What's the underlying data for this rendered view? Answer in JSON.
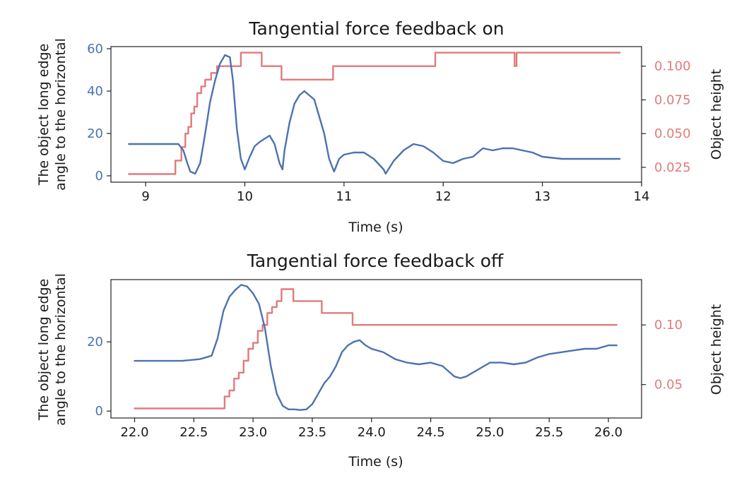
{
  "chart_data": [
    {
      "type": "line",
      "title": "Tangential force feedback on",
      "xlabel": "Time (s)",
      "ylabel": [
        "The object long edge",
        "angle to the horizontal"
      ],
      "ylabel_right": "Object height",
      "xlim": [
        8.65,
        14.0
      ],
      "ylim": [
        -3,
        61
      ],
      "ylim_right": [
        0.014,
        0.1145
      ],
      "x_ticks": [
        9,
        10,
        11,
        12,
        13,
        14
      ],
      "y_ticks": [
        0,
        20,
        40,
        60
      ],
      "y_ticks_right": [
        0.025,
        0.05,
        0.075,
        0.1
      ],
      "x_tick_labels": [
        "9",
        "10",
        "11",
        "12",
        "13",
        "14"
      ],
      "y_tick_labels": [
        "0",
        "20",
        "40",
        "60"
      ],
      "y_right_tick_labels": [
        "0.025",
        "0.050",
        "0.075",
        "0.100"
      ],
      "grid": false,
      "series": [
        {
          "name": "angle",
          "axis": "left",
          "color": "#4c72b0",
          "x": [
            8.83,
            9.1,
            9.33,
            9.38,
            9.42,
            9.45,
            9.5,
            9.55,
            9.6,
            9.65,
            9.7,
            9.75,
            9.8,
            9.85,
            9.88,
            9.92,
            9.96,
            10.0,
            10.05,
            10.1,
            10.15,
            10.25,
            10.3,
            10.35,
            10.38,
            10.4,
            10.45,
            10.5,
            10.55,
            10.6,
            10.7,
            10.8,
            10.85,
            10.9,
            10.95,
            11.0,
            11.1,
            11.2,
            11.3,
            11.4,
            11.42,
            11.5,
            11.6,
            11.7,
            11.8,
            11.9,
            12.0,
            12.1,
            12.2,
            12.3,
            12.4,
            12.5,
            12.6,
            12.7,
            12.8,
            12.9,
            13.0,
            13.2,
            13.4,
            13.6,
            13.78
          ],
          "values": [
            15,
            15,
            15,
            12,
            6,
            2,
            1,
            6,
            20,
            35,
            45,
            53,
            57,
            56,
            45,
            22,
            8,
            3,
            9,
            14,
            16,
            19,
            15,
            6,
            3,
            12,
            25,
            34,
            38,
            40,
            36,
            20,
            8,
            2,
            8,
            10,
            11,
            11,
            8,
            3,
            1,
            7,
            12,
            15,
            14,
            11,
            7,
            6,
            8,
            9,
            13,
            12,
            13,
            13,
            12,
            11,
            9,
            8,
            8,
            8,
            8
          ]
        },
        {
          "name": "height",
          "axis": "right",
          "color": "#e07b7b",
          "x": [
            8.83,
            9.3,
            9.3,
            9.36,
            9.36,
            9.4,
            9.4,
            9.43,
            9.43,
            9.46,
            9.46,
            9.49,
            9.49,
            9.52,
            9.52,
            9.56,
            9.56,
            9.6,
            9.6,
            9.66,
            9.66,
            9.72,
            9.72,
            9.96,
            9.96,
            10.17,
            10.17,
            10.37,
            10.37,
            10.89,
            10.89,
            11.92,
            11.92,
            12.72,
            12.72,
            12.74,
            12.74,
            13.78
          ],
          "values": [
            0.02,
            0.02,
            0.03,
            0.03,
            0.04,
            0.04,
            0.05,
            0.05,
            0.055,
            0.055,
            0.065,
            0.065,
            0.07,
            0.07,
            0.08,
            0.08,
            0.085,
            0.085,
            0.09,
            0.09,
            0.095,
            0.095,
            0.1,
            0.1,
            0.11,
            0.11,
            0.1,
            0.1,
            0.09,
            0.09,
            0.1,
            0.1,
            0.11,
            0.11,
            0.1,
            0.1,
            0.11,
            0.11
          ]
        }
      ]
    },
    {
      "type": "line",
      "title": "Tangential force feedback off",
      "xlabel": "Time (s)",
      "ylabel": [
        "The object long edge",
        "angle to the horizontal"
      ],
      "ylabel_right": "Object height",
      "xlim": [
        21.8,
        26.28
      ],
      "ylim": [
        -2,
        38
      ],
      "ylim_right": [
        0.022,
        0.138
      ],
      "x_ticks": [
        22.0,
        22.5,
        23.0,
        23.5,
        24.0,
        24.5,
        25.0,
        25.5,
        26.0
      ],
      "y_ticks": [
        0,
        20
      ],
      "y_ticks_right": [
        0.05,
        0.1
      ],
      "x_tick_labels": [
        "22.0",
        "22.5",
        "23.0",
        "23.5",
        "24.0",
        "24.5",
        "25.0",
        "25.5",
        "26.0"
      ],
      "y_tick_labels": [
        "0",
        "20"
      ],
      "y_right_tick_labels": [
        "0.05",
        "0.10"
      ],
      "grid": false,
      "series": [
        {
          "name": "angle",
          "axis": "left",
          "color": "#4c72b0",
          "x": [
            22.0,
            22.4,
            22.55,
            22.65,
            22.7,
            22.75,
            22.8,
            22.85,
            22.9,
            22.95,
            23.0,
            23.05,
            23.1,
            23.15,
            23.2,
            23.25,
            23.3,
            23.35,
            23.4,
            23.45,
            23.5,
            23.55,
            23.6,
            23.65,
            23.7,
            23.75,
            23.8,
            23.85,
            23.9,
            23.95,
            24.0,
            24.1,
            24.2,
            24.3,
            24.4,
            24.5,
            24.6,
            24.7,
            24.75,
            24.8,
            24.9,
            25.0,
            25.1,
            25.2,
            25.3,
            25.4,
            25.5,
            25.6,
            25.7,
            25.8,
            25.9,
            26.0,
            26.07
          ],
          "values": [
            14.5,
            14.5,
            15,
            16,
            21,
            29,
            33,
            35,
            36.5,
            36,
            34,
            31,
            24,
            13,
            5,
            1.5,
            0.5,
            0.5,
            0.3,
            0.5,
            2,
            5,
            8,
            10,
            13,
            17,
            19,
            20,
            20.5,
            19,
            18,
            17,
            15,
            14,
            13.5,
            14,
            13,
            10,
            9.5,
            10,
            12,
            14,
            14,
            13.5,
            14,
            15.5,
            16.5,
            17,
            17.5,
            18,
            18,
            19,
            19
          ]
        },
        {
          "name": "height",
          "axis": "right",
          "color": "#e07b7b",
          "x": [
            22.0,
            22.76,
            22.76,
            22.8,
            22.8,
            22.84,
            22.84,
            22.88,
            22.88,
            22.92,
            22.92,
            22.96,
            22.96,
            23.0,
            23.0,
            23.04,
            23.04,
            23.08,
            23.08,
            23.12,
            23.12,
            23.16,
            23.16,
            23.2,
            23.2,
            23.24,
            23.24,
            23.34,
            23.34,
            23.58,
            23.58,
            23.84,
            23.84,
            26.07
          ],
          "values": [
            0.03,
            0.03,
            0.04,
            0.04,
            0.045,
            0.045,
            0.055,
            0.055,
            0.06,
            0.06,
            0.07,
            0.07,
            0.08,
            0.08,
            0.085,
            0.085,
            0.095,
            0.095,
            0.1,
            0.1,
            0.11,
            0.11,
            0.115,
            0.115,
            0.12,
            0.12,
            0.13,
            0.13,
            0.12,
            0.12,
            0.11,
            0.11,
            0.1,
            0.1
          ]
        }
      ]
    }
  ],
  "colors": {
    "left_axis": "#4c72b0",
    "right_axis": "#e07b7b",
    "frame": "#222222",
    "text": "#1a1a1a"
  }
}
